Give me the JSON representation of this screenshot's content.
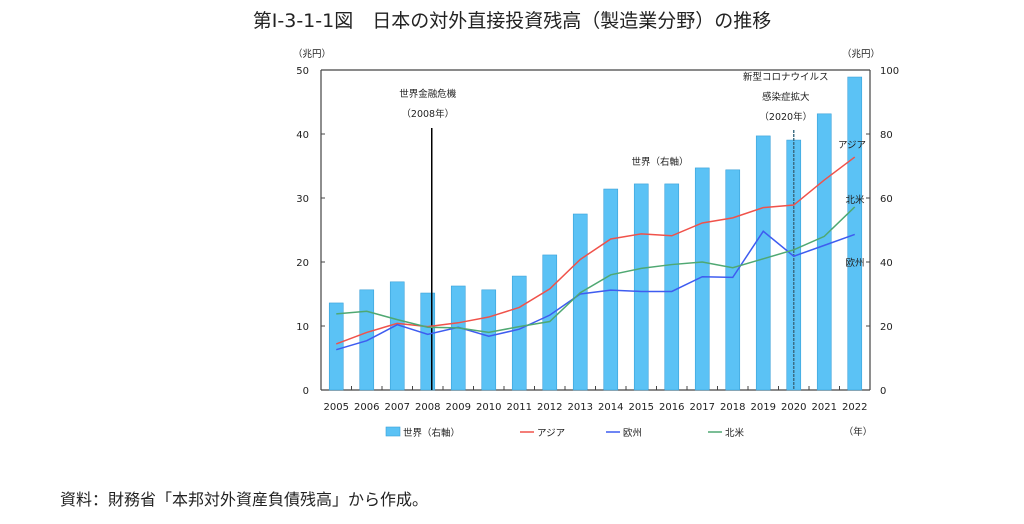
{
  "title": "第Ⅰ-3-1-1図　日本の対外直接投資残高（製造業分野）の推移",
  "source_note": "資料：財務省「本邦対外資産負債残高」から作成。",
  "chart_data": {
    "type": "bar+line",
    "categories": [
      "2005",
      "2006",
      "2007",
      "2008",
      "2009",
      "2010",
      "2011",
      "2012",
      "2013",
      "2014",
      "2015",
      "2016",
      "2017",
      "2018",
      "2019",
      "2020",
      "2021",
      "2022"
    ],
    "xlabel": "（年）",
    "ylabel_left": "（兆円）",
    "ylabel_right": "（兆円）",
    "ylim_left": [
      0,
      50
    ],
    "ylim_right": [
      0,
      100
    ],
    "yticks_left": [
      "0",
      "10",
      "20",
      "30",
      "40",
      "50"
    ],
    "yticks_right": [
      "0",
      "20",
      "40",
      "60",
      "80",
      "100"
    ],
    "grid": false,
    "legend_placement": "bottom",
    "series": [
      {
        "name": "世界（右軸）",
        "type": "bar",
        "axis": "right",
        "color": "#5bc2f5",
        "values": [
          27.2,
          31.3,
          33.8,
          30.3,
          32.5,
          31.3,
          35.6,
          42.2,
          55.0,
          62.8,
          64.4,
          64.4,
          69.4,
          68.8,
          79.4,
          78.1,
          86.3,
          97.8
        ]
      },
      {
        "name": "アジア",
        "type": "line",
        "axis": "left",
        "color": "#f0524a",
        "values": [
          7.2,
          9.0,
          10.4,
          9.9,
          10.5,
          11.4,
          12.9,
          15.8,
          20.4,
          23.6,
          24.4,
          24.1,
          26.1,
          26.9,
          28.5,
          28.9,
          32.8,
          36.4
        ]
      },
      {
        "name": "欧州",
        "type": "line",
        "axis": "left",
        "color": "#3e5cf0",
        "values": [
          6.3,
          7.7,
          10.2,
          8.7,
          9.8,
          8.4,
          9.5,
          11.7,
          15.0,
          15.6,
          15.4,
          15.4,
          17.7,
          17.6,
          24.8,
          20.9,
          22.6,
          24.3
        ]
      },
      {
        "name": "北米",
        "type": "line",
        "axis": "left",
        "color": "#4fa872",
        "values": [
          11.9,
          12.3,
          11.0,
          9.8,
          9.7,
          9.0,
          9.9,
          10.7,
          15.2,
          18.0,
          19.0,
          19.6,
          20.0,
          19.1,
          20.5,
          21.9,
          24.0,
          28.6
        ]
      }
    ],
    "annotations": [
      {
        "category": "2008",
        "lines": [
          "世界金融危機",
          "（2008年）"
        ],
        "style": "solid"
      },
      {
        "category": "2020",
        "lines": [
          "新型コロナウイルス",
          "感染症拡大",
          "（2020年）"
        ],
        "style": "dashed"
      }
    ],
    "series_labels": {
      "world": "世界（右軸）",
      "asia": "アジア",
      "north_america": "北米",
      "europe": "欧州"
    }
  }
}
